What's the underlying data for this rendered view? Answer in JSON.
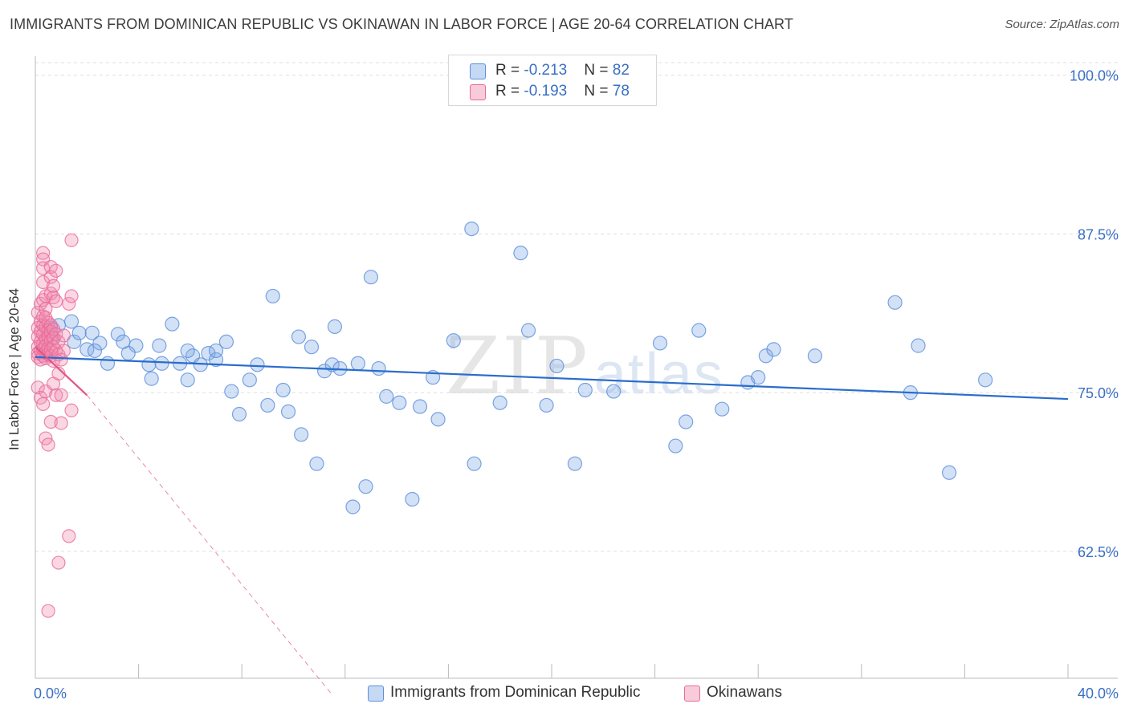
{
  "title": "IMMIGRANTS FROM DOMINICAN REPUBLIC VS OKINAWAN IN LABOR FORCE | AGE 20-64 CORRELATION CHART",
  "source": "Source: ZipAtlas.com",
  "watermark": {
    "zip": "ZIP",
    "atlas": "atlas"
  },
  "legend": {
    "blue": {
      "r_label": "R = ",
      "r_value": "-0.213",
      "n_label": "N = ",
      "n_value": "82"
    },
    "pink": {
      "r_label": "R = ",
      "r_value": "-0.193",
      "n_label": "N = ",
      "n_value": "78"
    }
  },
  "bottom_legend": {
    "blue": "Immigrants from Dominican Republic",
    "pink": "Okinawans"
  },
  "colors": {
    "blue": "#5b8fd9",
    "blue_fill": "rgba(126,170,230,0.35)",
    "blue_line": "#2a6dcc",
    "pink": "#e86a98",
    "pink_fill": "rgba(240,140,175,0.35)",
    "pink_line": "#e05586",
    "tick_label": "#3a6fc4",
    "grid": "#dddddd"
  },
  "chart_data": {
    "type": "scatter",
    "ylabel": "In Labor Force | Age 20-64",
    "xlim": [
      0,
      40
    ],
    "ylim": [
      52.5,
      101.5
    ],
    "x_tick_labels": [
      {
        "v": 0,
        "label": "0.0%"
      },
      {
        "v": 40,
        "label": "40.0%"
      }
    ],
    "y_ticks": [
      {
        "v": 100,
        "label": "100.0%"
      },
      {
        "v": 87.5,
        "label": "87.5%"
      },
      {
        "v": 75,
        "label": "75.0%"
      },
      {
        "v": 62.5,
        "label": "62.5%"
      }
    ],
    "grid": true,
    "series": [
      {
        "name": "Immigrants from Dominican Republic",
        "color": "blue",
        "trend": {
          "x": [
            0,
            40
          ],
          "y": [
            77.8,
            74.5
          ],
          "dashed": false
        },
        "points": [
          [
            0.6,
            80.1
          ],
          [
            0.7,
            79.3
          ],
          [
            0.9,
            80.3
          ],
          [
            1.4,
            80.6
          ],
          [
            1.5,
            79.0
          ],
          [
            1.7,
            79.7
          ],
          [
            2.0,
            78.4
          ],
          [
            2.2,
            79.7
          ],
          [
            2.5,
            78.9
          ],
          [
            2.8,
            77.3
          ],
          [
            3.2,
            79.6
          ],
          [
            3.9,
            78.7
          ],
          [
            3.6,
            78.1
          ],
          [
            4.4,
            77.2
          ],
          [
            4.5,
            76.1
          ],
          [
            4.8,
            78.7
          ],
          [
            4.9,
            77.3
          ],
          [
            5.3,
            80.4
          ],
          [
            5.6,
            77.3
          ],
          [
            5.9,
            76.0
          ],
          [
            6.1,
            77.9
          ],
          [
            6.4,
            77.2
          ],
          [
            6.7,
            78.1
          ],
          [
            7.0,
            77.6
          ],
          [
            7.4,
            79.0
          ],
          [
            7.6,
            75.1
          ],
          [
            7.9,
            73.3
          ],
          [
            8.3,
            76.0
          ],
          [
            8.6,
            77.2
          ],
          [
            9.0,
            74.0
          ],
          [
            9.2,
            82.6
          ],
          [
            9.6,
            75.2
          ],
          [
            9.8,
            73.5
          ],
          [
            10.2,
            79.4
          ],
          [
            10.3,
            71.7
          ],
          [
            10.7,
            78.6
          ],
          [
            10.9,
            69.4
          ],
          [
            11.2,
            76.7
          ],
          [
            11.5,
            77.2
          ],
          [
            11.6,
            80.2
          ],
          [
            11.8,
            76.9
          ],
          [
            12.3,
            66.0
          ],
          [
            12.5,
            77.3
          ],
          [
            12.8,
            67.6
          ],
          [
            13.0,
            84.1
          ],
          [
            13.3,
            76.9
          ],
          [
            13.6,
            74.7
          ],
          [
            14.1,
            74.2
          ],
          [
            14.9,
            73.9
          ],
          [
            14.6,
            66.6
          ],
          [
            15.4,
            76.2
          ],
          [
            15.6,
            72.9
          ],
          [
            16.2,
            79.1
          ],
          [
            16.9,
            87.9
          ],
          [
            17.0,
            69.4
          ],
          [
            18.0,
            74.2
          ],
          [
            18.8,
            86.0
          ],
          [
            19.1,
            79.9
          ],
          [
            19.8,
            74.0
          ],
          [
            20.2,
            77.1
          ],
          [
            20.9,
            69.4
          ],
          [
            21.3,
            75.2
          ],
          [
            22.4,
            75.1
          ],
          [
            24.2,
            78.9
          ],
          [
            24.8,
            70.8
          ],
          [
            25.2,
            72.7
          ],
          [
            25.7,
            79.9
          ],
          [
            26.6,
            73.7
          ],
          [
            27.6,
            75.8
          ],
          [
            28.0,
            76.2
          ],
          [
            28.3,
            77.9
          ],
          [
            28.6,
            78.4
          ],
          [
            30.2,
            77.9
          ],
          [
            33.3,
            82.1
          ],
          [
            33.9,
            75.0
          ],
          [
            34.2,
            78.7
          ],
          [
            35.4,
            68.7
          ],
          [
            36.8,
            76.0
          ],
          [
            7.0,
            78.3
          ],
          [
            2.3,
            78.3
          ],
          [
            5.9,
            78.3
          ],
          [
            3.4,
            79.0
          ]
        ]
      },
      {
        "name": "Okinawans",
        "color": "pink",
        "trend": {
          "x": [
            0,
            2.0
          ],
          "y": [
            78.6,
            74.8
          ],
          "dashed": false,
          "extension": {
            "x": [
              2.0,
              11.5
            ],
            "y": [
              74.8,
              51.2
            ],
            "dashed": true
          }
        },
        "points": [
          [
            0.1,
            81.3
          ],
          [
            0.1,
            80.1
          ],
          [
            0.1,
            79.4
          ],
          [
            0.1,
            78.6
          ],
          [
            0.1,
            78.1
          ],
          [
            0.1,
            77.8
          ],
          [
            0.1,
            75.4
          ],
          [
            0.2,
            82.0
          ],
          [
            0.2,
            80.6
          ],
          [
            0.2,
            79.8
          ],
          [
            0.2,
            79.0
          ],
          [
            0.2,
            78.3
          ],
          [
            0.2,
            77.6
          ],
          [
            0.2,
            74.6
          ],
          [
            0.3,
            86.0
          ],
          [
            0.3,
            85.5
          ],
          [
            0.3,
            84.8
          ],
          [
            0.3,
            83.7
          ],
          [
            0.3,
            82.3
          ],
          [
            0.3,
            81.0
          ],
          [
            0.3,
            80.3
          ],
          [
            0.3,
            79.6
          ],
          [
            0.3,
            78.9
          ],
          [
            0.3,
            78.4
          ],
          [
            0.3,
            77.9
          ],
          [
            0.3,
            74.1
          ],
          [
            0.4,
            82.6
          ],
          [
            0.4,
            81.6
          ],
          [
            0.4,
            80.9
          ],
          [
            0.4,
            80.2
          ],
          [
            0.4,
            79.2
          ],
          [
            0.4,
            78.7
          ],
          [
            0.4,
            78.2
          ],
          [
            0.4,
            77.7
          ],
          [
            0.4,
            75.1
          ],
          [
            0.4,
            71.4
          ],
          [
            0.5,
            80.5
          ],
          [
            0.5,
            79.9
          ],
          [
            0.5,
            79.4
          ],
          [
            0.5,
            78.5
          ],
          [
            0.5,
            78.0
          ],
          [
            0.5,
            57.8
          ],
          [
            0.5,
            70.9
          ],
          [
            0.6,
            84.9
          ],
          [
            0.6,
            84.1
          ],
          [
            0.6,
            82.8
          ],
          [
            0.6,
            80.3
          ],
          [
            0.6,
            79.8
          ],
          [
            0.6,
            79.1
          ],
          [
            0.6,
            78.4
          ],
          [
            0.6,
            77.9
          ],
          [
            0.6,
            72.7
          ],
          [
            0.7,
            83.4
          ],
          [
            0.7,
            82.5
          ],
          [
            0.7,
            80.0
          ],
          [
            0.7,
            79.3
          ],
          [
            0.7,
            78.6
          ],
          [
            0.7,
            77.5
          ],
          [
            0.7,
            75.7
          ],
          [
            0.8,
            84.6
          ],
          [
            0.8,
            82.2
          ],
          [
            0.8,
            79.6
          ],
          [
            0.8,
            78.3
          ],
          [
            0.8,
            74.8
          ],
          [
            0.9,
            76.5
          ],
          [
            0.9,
            79.0
          ],
          [
            0.9,
            78.0
          ],
          [
            0.9,
            61.6
          ],
          [
            1.0,
            74.8
          ],
          [
            1.0,
            72.6
          ],
          [
            1.0,
            77.6
          ],
          [
            1.1,
            78.3
          ],
          [
            1.1,
            79.5
          ],
          [
            1.3,
            82.0
          ],
          [
            1.3,
            63.7
          ],
          [
            1.4,
            82.6
          ],
          [
            1.4,
            87.0
          ],
          [
            1.4,
            73.6
          ]
        ]
      }
    ]
  }
}
